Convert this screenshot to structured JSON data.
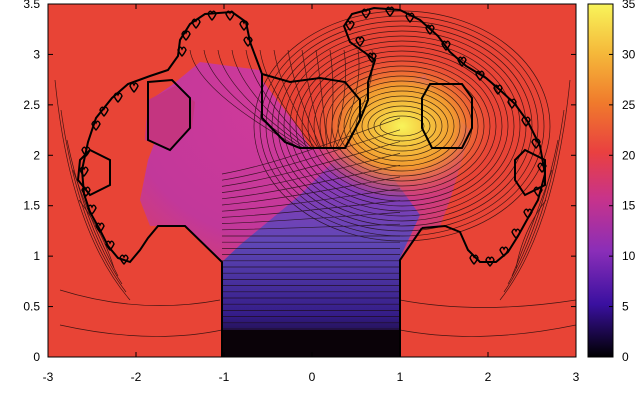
{
  "chart_data": {
    "type": "heatmap",
    "title": "",
    "xlabel": "",
    "ylabel": "",
    "xlim": [
      -3,
      3
    ],
    "ylim": [
      0,
      3.5
    ],
    "x_ticks": [
      "-3",
      "-2",
      "-1",
      "0",
      "1",
      "2",
      "3"
    ],
    "y_ticks": [
      "0",
      "0.5",
      "1",
      "1.5",
      "2",
      "2.5",
      "3",
      "3.5"
    ],
    "colorbar": {
      "range": [
        0,
        35
      ],
      "ticks": [
        "0",
        "5",
        "10",
        "15",
        "20",
        "25",
        "30",
        "35"
      ],
      "colormap": [
        "#000000",
        "#3a10a0",
        "#8a2eb8",
        "#c8338a",
        "#e94040",
        "#f07a2c",
        "#f5b83a",
        "#f8f45a"
      ]
    },
    "background_value": 20,
    "stem": {
      "x": [
        -1,
        1
      ],
      "y": [
        0,
        1.0
      ],
      "value_bottom": 0,
      "value_top": 14
    },
    "hot_spot": {
      "x": 1.0,
      "y": 2.3,
      "value": 32
    },
    "grid": false,
    "contours": true
  }
}
